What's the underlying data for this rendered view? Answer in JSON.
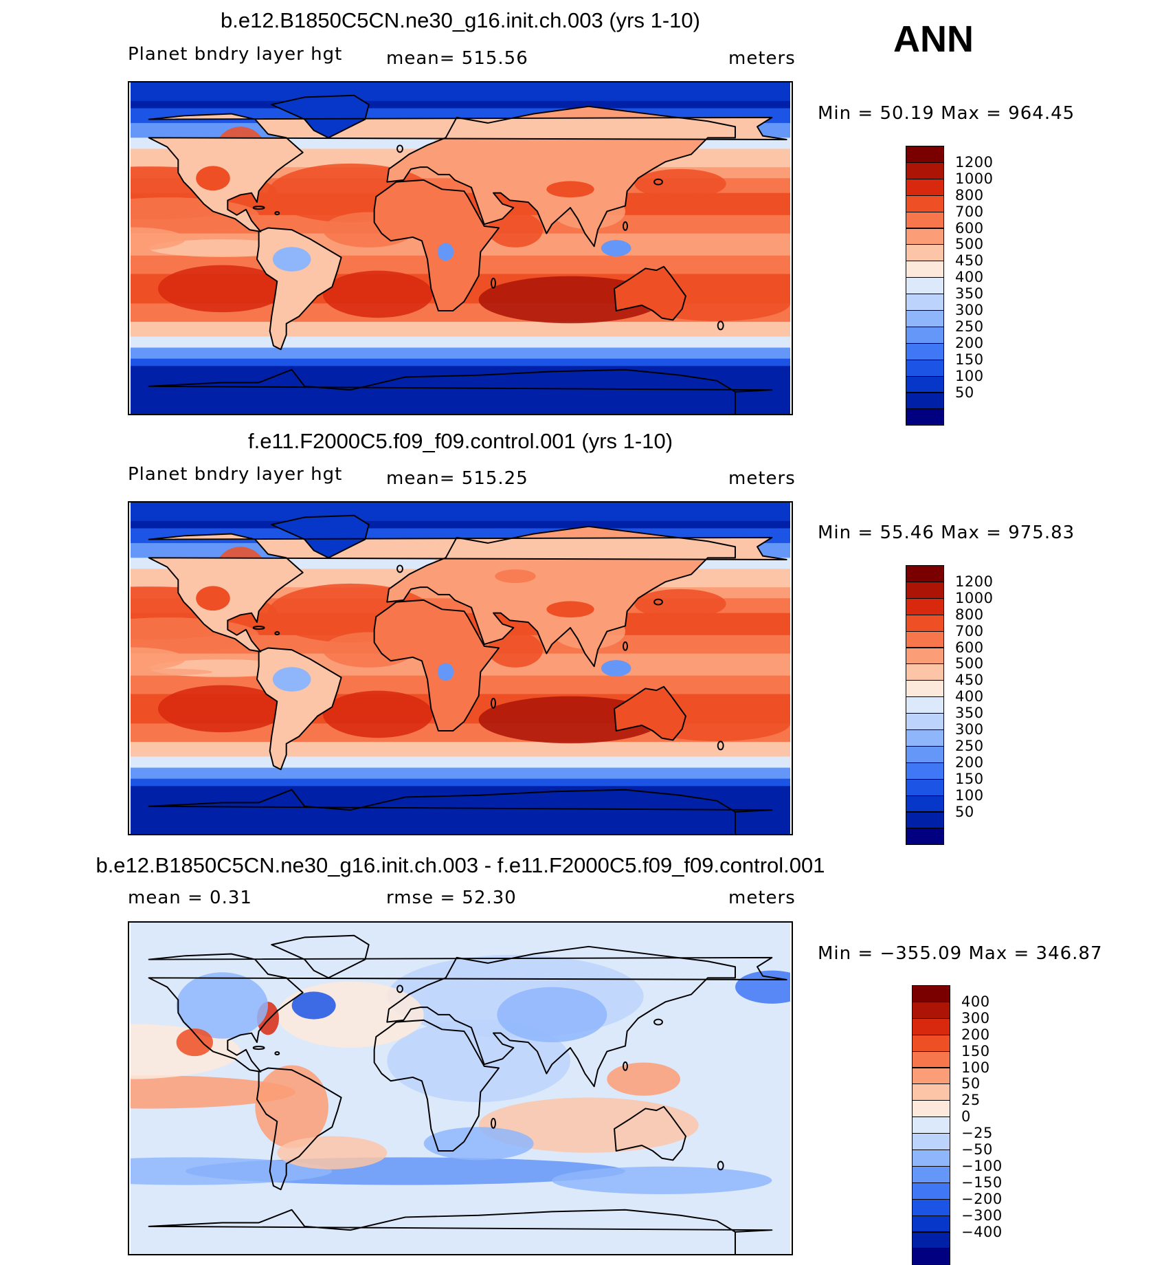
{
  "season": "ANN",
  "panels": [
    {
      "title": "b.e12.B1850C5CN.ne30_g16.init.ch.003 (yrs 1-10)",
      "left_label": "Planet bndry layer hgt",
      "center_label": "mean= 515.56",
      "units": "meters",
      "minmax": "Min =   50.19 Max = 964.45",
      "colorbar_labels": [
        "1200",
        "1000",
        "800",
        "700",
        "600",
        "500",
        "450",
        "400",
        "350",
        "300",
        "250",
        "200",
        "150",
        "100",
        "50"
      ]
    },
    {
      "title": "f.e11.F2000C5.f09_f09.control.001 (yrs 1-10)",
      "left_label": "Planet bndry layer hgt",
      "center_label": "mean= 515.25",
      "units": "meters",
      "minmax": "Min =   55.46 Max = 975.83",
      "colorbar_labels": [
        "1200",
        "1000",
        "800",
        "700",
        "600",
        "500",
        "450",
        "400",
        "350",
        "300",
        "250",
        "200",
        "150",
        "100",
        "50"
      ]
    },
    {
      "title": "b.e12.B1850C5CN.ne30_g16.init.ch.003 - f.e11.F2000C5.f09_f09.control.001",
      "left_label": "mean =    0.31",
      "center_label": "rmse =   52.30",
      "units": "meters",
      "minmax": "Min = −355.09 Max = 346.87",
      "colorbar_labels": [
        "400",
        "300",
        "200",
        "150",
        "100",
        "50",
        "25",
        "0",
        "−25",
        "−50",
        "−100",
        "−150",
        "−200",
        "−300",
        "−400"
      ]
    }
  ],
  "colors": {
    "abs_scale": [
      "#000080",
      "#0020a8",
      "#0737c8",
      "#1c55e6",
      "#3f77f5",
      "#6497f7",
      "#8fb6fb",
      "#bcd4fb",
      "#dce9fb",
      "#fde9dc",
      "#fcc5a8",
      "#fb9d76",
      "#f7764b",
      "#ee4f24",
      "#d8290f",
      "#ac1406",
      "#7a0000"
    ],
    "diff_scale": [
      "#000080",
      "#0020a8",
      "#0737c8",
      "#1c55e6",
      "#3f77f5",
      "#6497f7",
      "#8fb6fb",
      "#bcd4fb",
      "#dce9fb",
      "#fde9dc",
      "#fcc5a8",
      "#fb9d76",
      "#f7764b",
      "#ee4f24",
      "#d8290f",
      "#ac1406",
      "#7a0000"
    ],
    "coastline": "#000000"
  }
}
